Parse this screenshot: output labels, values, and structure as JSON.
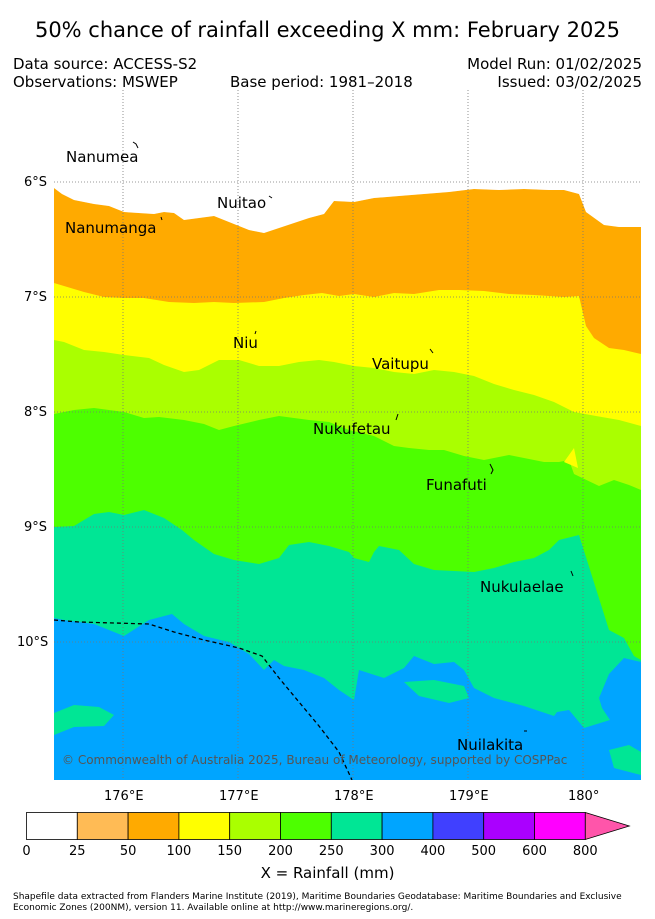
{
  "title": "50% chance of rainfall exceeding X mm: February 2025",
  "meta": {
    "data_source": "Data source: ACCESS-S2",
    "observations": "Observations: MSWEP",
    "base_period": "Base period: 1981–2018",
    "model_run": "Model Run: 01/02/2025",
    "issued": "Issued: 03/02/2025"
  },
  "latitude_labels": [
    "6°S",
    "7°S",
    "8°S",
    "9°S",
    "10°S"
  ],
  "longitude_labels": [
    "176°E",
    "177°E",
    "178°E",
    "179°E",
    "180°"
  ],
  "islands": [
    "Nanumea",
    "Nuitao",
    "Nanumanga",
    "Niu",
    "Vaitupu",
    "Nukufetau",
    "Funafuti",
    "Nukulaelae",
    "Nuilakita"
  ],
  "copyright": "© Commonwealth of Australia 2025, Bureau of Meteorology, supported by COSPPac",
  "colorbar": {
    "ticks": [
      "0",
      "25",
      "50",
      "100",
      "150",
      "200",
      "250",
      "300",
      "400",
      "500",
      "600",
      "800"
    ],
    "colors": [
      "#ffffff",
      "#ffbb55",
      "#ffaa00",
      "#ffff00",
      "#aaff00",
      "#4dff00",
      "#00e695",
      "#00a5ff",
      "#4040ff",
      "#aa00ff",
      "#ff00ff",
      "#ff55aa"
    ],
    "label": "X = Rainfall (mm)"
  },
  "footer": "Shapefile data extracted from Flanders Marine Institute (2019), Maritime Boundaries Geodatabase: Maritime Boundaries and Exclusive Economic Zones (200NM), version 11. Available online at http://www.marineregions.org/."
}
